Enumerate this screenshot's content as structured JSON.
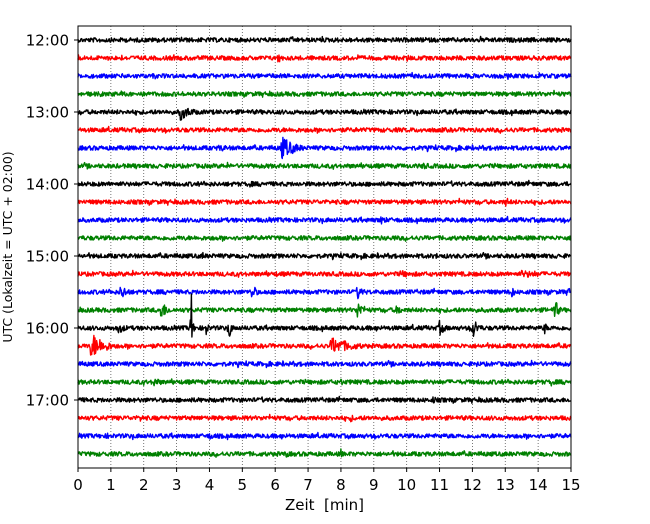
{
  "chart_data": {
    "type": "line",
    "title": "",
    "xlabel": "Zeit  [min]",
    "ylabel": "UTC (Lokalzeit = UTC + 02:00)",
    "xlim": [
      0,
      15
    ],
    "x_ticks": [
      "0",
      "1",
      "2",
      "3",
      "4",
      "5",
      "6",
      "7",
      "8",
      "9",
      "10",
      "11",
      "12",
      "13",
      "14",
      "15"
    ],
    "y_ticks": [
      {
        "label": "12:00",
        "trace": 0
      },
      {
        "label": "13:00",
        "trace": 4
      },
      {
        "label": "14:00",
        "trace": 8
      },
      {
        "label": "15:00",
        "trace": 12
      },
      {
        "label": "16:00",
        "trace": 16
      },
      {
        "label": "17:00",
        "trace": 20
      }
    ],
    "grid": "vertical-dotted",
    "trace_count": 24,
    "minutes_per_trace": 15,
    "colors": [
      "#000000",
      "#ff0000",
      "#0000ff",
      "#008000"
    ],
    "events": [
      {
        "trace": 1,
        "minute": 6.1,
        "amp": 8,
        "dur": 0.1
      },
      {
        "trace": 1,
        "minute": 10.0,
        "amp": 4,
        "dur": 0.4
      },
      {
        "trace": 4,
        "minute": 3.1,
        "amp": 9,
        "dur": 0.6
      },
      {
        "trace": 6,
        "minute": 6.2,
        "amp": 12,
        "dur": 0.7
      },
      {
        "trace": 6,
        "minute": 4.3,
        "amp": 4,
        "dur": 0.6
      },
      {
        "trace": 7,
        "minute": 10.5,
        "amp": 4,
        "dur": 0.5
      },
      {
        "trace": 8,
        "minute": 5.2,
        "amp": 4,
        "dur": 0.4
      },
      {
        "trace": 9,
        "minute": 13.0,
        "amp": 5,
        "dur": 0.4
      },
      {
        "trace": 9,
        "minute": 5.3,
        "amp": 3,
        "dur": 0.4
      },
      {
        "trace": 10,
        "minute": 9.2,
        "amp": 5,
        "dur": 0.4
      },
      {
        "trace": 11,
        "minute": 9.6,
        "amp": 4,
        "dur": 0.2
      },
      {
        "trace": 12,
        "minute": 3.8,
        "amp": 5,
        "dur": 0.1
      },
      {
        "trace": 12,
        "minute": 10.9,
        "amp": 3,
        "dur": 0.3
      },
      {
        "trace": 13,
        "minute": 13.5,
        "amp": 4,
        "dur": 2
      },
      {
        "trace": 13,
        "minute": 9.8,
        "amp": 4,
        "dur": 1
      },
      {
        "trace": 13,
        "minute": 6.0,
        "amp": 3,
        "dur": 0.5
      },
      {
        "trace": 14,
        "minute": 1.3,
        "amp": 8,
        "dur": 0.4
      },
      {
        "trace": 14,
        "minute": 5.3,
        "amp": 10,
        "dur": 0.2
      },
      {
        "trace": 14,
        "minute": 8.5,
        "amp": 8,
        "dur": 0.3
      },
      {
        "trace": 14,
        "minute": 13.2,
        "amp": 6,
        "dur": 0.2
      },
      {
        "trace": 14,
        "minute": 14.9,
        "amp": 8,
        "dur": 0.1
      },
      {
        "trace": 15,
        "minute": 2.5,
        "amp": 10,
        "dur": 0.4
      },
      {
        "trace": 15,
        "minute": 8.5,
        "amp": 10,
        "dur": 0.3
      },
      {
        "trace": 15,
        "minute": 14.5,
        "amp": 12,
        "dur": 0.2
      },
      {
        "trace": 15,
        "minute": 9.7,
        "amp": 6,
        "dur": 0.3
      },
      {
        "trace": 16,
        "minute": 3.45,
        "amp": 36,
        "dur": 0.06
      },
      {
        "trace": 16,
        "minute": 4.6,
        "amp": 14,
        "dur": 0.1
      },
      {
        "trace": 16,
        "minute": 3.9,
        "amp": 10,
        "dur": 0.1
      },
      {
        "trace": 16,
        "minute": 12.0,
        "amp": 12,
        "dur": 0.3
      },
      {
        "trace": 16,
        "minute": 11.0,
        "amp": 8,
        "dur": 0.3
      },
      {
        "trace": 16,
        "minute": 14.2,
        "amp": 8,
        "dur": 0.1
      },
      {
        "trace": 16,
        "minute": 1.2,
        "amp": 6,
        "dur": 0.5
      },
      {
        "trace": 17,
        "minute": 0.4,
        "amp": 14,
        "dur": 0.7
      },
      {
        "trace": 17,
        "minute": 7.7,
        "amp": 9,
        "dur": 1.2
      },
      {
        "trace": 19,
        "minute": 2.3,
        "amp": 5,
        "dur": 0.5
      },
      {
        "trace": 19,
        "minute": 8.0,
        "amp": 4,
        "dur": 0.2
      },
      {
        "trace": 19,
        "minute": 14.4,
        "amp": 4,
        "dur": 0.4
      },
      {
        "trace": 20,
        "minute": 1.5,
        "amp": 3,
        "dur": 0.4
      },
      {
        "trace": 20,
        "minute": 10.8,
        "amp": 4,
        "dur": 0.3
      },
      {
        "trace": 21,
        "minute": 1.9,
        "amp": 4,
        "dur": 0.3
      },
      {
        "trace": 21,
        "minute": 8.3,
        "amp": 4,
        "dur": 0.3
      },
      {
        "trace": 22,
        "minute": 4.0,
        "amp": 4,
        "dur": 0.4
      },
      {
        "trace": 22,
        "minute": 0.9,
        "amp": 3,
        "dur": 0.4
      },
      {
        "trace": 23,
        "minute": 6.3,
        "amp": 4,
        "dur": 0.4
      },
      {
        "trace": 23,
        "minute": 8.0,
        "amp": 6,
        "dur": 0.1
      }
    ]
  }
}
